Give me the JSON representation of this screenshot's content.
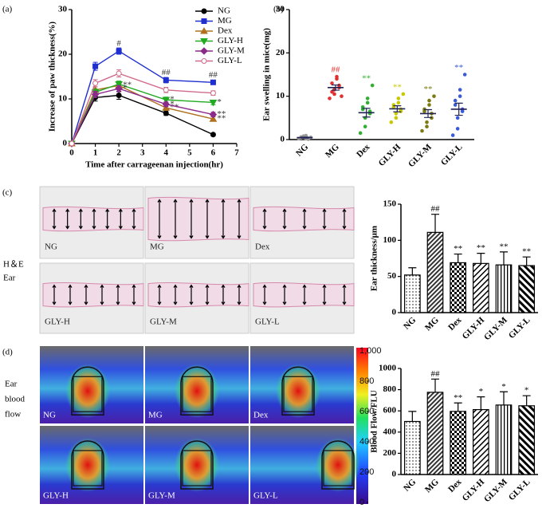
{
  "chart_data": [
    {
      "type": "line",
      "xlabel": "Time after carrageenan injection(hr)",
      "ylabel": "Increase of paw thickness(%)",
      "x": [
        0,
        1,
        2,
        4,
        6
      ],
      "xlim": [
        0,
        7
      ],
      "xticks": [
        0,
        1,
        2,
        3,
        4,
        5,
        6,
        7
      ],
      "ylim": [
        0,
        30
      ],
      "yticks": [
        0,
        10,
        20,
        30
      ],
      "legend": "top-right",
      "series": [
        {
          "name": "NG",
          "color": "#000000",
          "values": [
            0,
            10.3,
            10.8,
            6.8,
            2.0
          ],
          "errors": [
            0,
            0.8,
            0.9,
            0.5,
            0.3
          ],
          "point_labels": [
            null,
            null,
            null,
            null,
            null
          ]
        },
        {
          "name": "MG",
          "color": "#1f2fd0",
          "values": [
            0,
            17.3,
            20.7,
            14.2,
            13.7
          ],
          "errors": [
            0,
            0.9,
            0.7,
            0.6,
            0.4
          ],
          "point_labels": [
            null,
            null,
            "#",
            "##",
            "##"
          ]
        },
        {
          "name": "Dex",
          "color": "#b07020",
          "values": [
            0,
            12.0,
            13.0,
            8.0,
            5.5
          ],
          "errors": [
            0,
            0.7,
            0.8,
            0.6,
            0.5
          ],
          "point_labels": [
            null,
            null,
            "**",
            "**",
            "**"
          ]
        },
        {
          "name": "GLY-H",
          "color": "#22aa22",
          "values": [
            0,
            11.5,
            13.3,
            9.8,
            9.2
          ],
          "errors": [
            0,
            0.7,
            0.7,
            0.6,
            0.5
          ],
          "point_labels": [
            null,
            null,
            null,
            "*",
            "*"
          ]
        },
        {
          "name": "GLY-M",
          "color": "#8b2a8b",
          "values": [
            0,
            11.0,
            12.3,
            8.8,
            6.5
          ],
          "errors": [
            0,
            0.7,
            0.7,
            0.5,
            0.5
          ],
          "point_labels": [
            null,
            null,
            "*",
            "*",
            "**"
          ]
        },
        {
          "name": "GLY-L",
          "color": "#d06b8a",
          "values": [
            0,
            13.5,
            15.7,
            12.0,
            11.3
          ],
          "errors": [
            0,
            0.8,
            0.8,
            0.6,
            0.5
          ],
          "point_labels": [
            null,
            null,
            null,
            null,
            null
          ]
        }
      ]
    },
    {
      "type": "dot",
      "ylabel": "Ear swelling in mice(mg)",
      "categories": [
        "NG",
        "MG",
        "Dex",
        "GLY-H",
        "GLY-M",
        "GLY-L"
      ],
      "ylim": [
        0,
        30
      ],
      "yticks": [
        0,
        10,
        20,
        30
      ],
      "mean_color": "#222255",
      "colors": [
        "#999999",
        "#e03030",
        "#30b030",
        "#c8c800",
        "#7a7a10",
        "#3a5ad8"
      ],
      "points": [
        [
          0.2,
          0.5,
          0.8,
          0.3,
          0.1,
          0.6,
          0.4,
          0.9,
          0.2,
          0.5
        ],
        [
          9.5,
          10.5,
          11.5,
          12,
          12.5,
          13,
          11,
          14,
          14.5,
          10
        ],
        [
          1.5,
          3,
          5,
          6,
          6.5,
          7,
          7.5,
          8.5,
          9.5,
          12.5
        ],
        [
          4,
          5,
          6,
          6.5,
          7,
          7.5,
          8,
          8.5,
          9.5,
          10.5
        ],
        [
          2,
          3,
          4,
          5,
          6,
          6.5,
          7,
          8,
          9,
          10
        ],
        [
          1,
          2.5,
          5,
          6.5,
          7,
          8,
          9,
          10,
          11.5,
          15
        ]
      ],
      "means": [
        0.45,
        12.0,
        6.2,
        7.1,
        6.0,
        7.0
      ],
      "errors": [
        0.1,
        0.6,
        1.0,
        0.7,
        0.9,
        1.4
      ],
      "labels": [
        null,
        "##",
        "**",
        "**",
        "**",
        "**"
      ]
    },
    {
      "type": "bar",
      "ylabel": "Ear thickness/μm",
      "categories": [
        "NG",
        "MG",
        "Dex",
        "GLY-H",
        "GLY-M",
        "GLY-L"
      ],
      "ylim": [
        0,
        150
      ],
      "yticks": [
        0,
        50,
        100,
        150
      ],
      "values": [
        52,
        111,
        69,
        68,
        66,
        65
      ],
      "errors": [
        10,
        25,
        12,
        14,
        18,
        12
      ],
      "labels": [
        null,
        "##",
        "**",
        "**",
        "**",
        "**"
      ]
    },
    {
      "type": "bar",
      "ylabel": "Blood Flow/FLU",
      "categories": [
        "NG",
        "MG",
        "Dex",
        "GLY-H",
        "GLY-M",
        "GLY-L"
      ],
      "ylim": [
        0,
        1000
      ],
      "yticks": [
        0,
        200,
        400,
        600,
        800,
        1000
      ],
      "values": [
        500,
        775,
        595,
        612,
        655,
        648
      ],
      "errors": [
        95,
        125,
        80,
        120,
        125,
        95
      ],
      "labels": [
        null,
        "##",
        "**",
        "*",
        "*",
        "*"
      ]
    }
  ],
  "panel_labels": [
    "(a)",
    "(b)",
    "(c)",
    "(d)"
  ],
  "row_labels": {
    "c": [
      "H＆E",
      "Ear"
    ],
    "d": [
      "Ear",
      "blood",
      "flow"
    ]
  },
  "images": {
    "c": [
      "NG",
      "MG",
      "Dex",
      "GLY-H",
      "GLY-M",
      "GLY-L"
    ],
    "d": [
      "NG",
      "MG",
      "Dex",
      "GLY-H",
      "GLY-M",
      "GLY-L"
    ]
  },
  "colorbar": {
    "lim": [
      0,
      1000
    ],
    "ticks": [
      0,
      200,
      400,
      600,
      800,
      {
        "value": 1000,
        "label": "1,000"
      }
    ]
  }
}
